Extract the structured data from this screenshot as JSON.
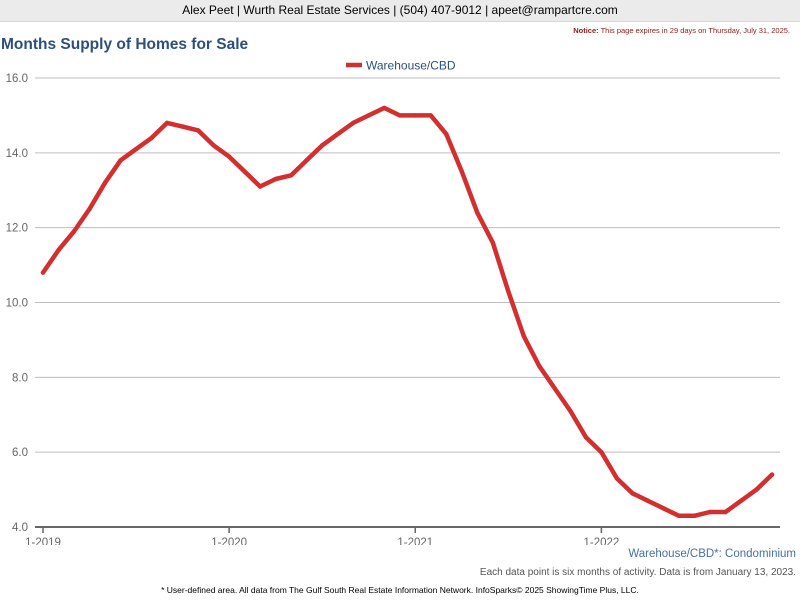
{
  "header": {
    "contact": "Alex Peet | Wurth Real Estate Services | (504) 407-9012 | apeet@rampartcre.com",
    "notice_label": "Notice:",
    "notice_text": "This page expires in 29 days on Thursday, July 31, 2025."
  },
  "chart_data": {
    "type": "line",
    "title": "Months Supply of Homes for Sale",
    "xlabel": "",
    "ylabel": "",
    "ylim": [
      4.0,
      16.0
    ],
    "yticks": [
      "4.0",
      "6.0",
      "8.0",
      "10.0",
      "12.0",
      "14.0",
      "16.0"
    ],
    "xticks": [
      "1-2019",
      "1-2020",
      "1-2021",
      "1-2022"
    ],
    "grid": true,
    "legend": "top-center",
    "x": [
      "1-2019",
      "2-2019",
      "3-2019",
      "4-2019",
      "5-2019",
      "6-2019",
      "7-2019",
      "8-2019",
      "9-2019",
      "10-2019",
      "11-2019",
      "12-2019",
      "1-2020",
      "2-2020",
      "3-2020",
      "4-2020",
      "5-2020",
      "6-2020",
      "7-2020",
      "8-2020",
      "9-2020",
      "10-2020",
      "11-2020",
      "12-2020",
      "1-2021",
      "2-2021",
      "3-2021",
      "4-2021",
      "5-2021",
      "6-2021",
      "7-2021",
      "8-2021",
      "9-2021",
      "10-2021",
      "11-2021",
      "12-2021",
      "1-2022",
      "2-2022",
      "3-2022",
      "4-2022",
      "5-2022",
      "6-2022",
      "7-2022",
      "8-2022",
      "9-2022",
      "10-2022",
      "11-2022",
      "12-2022"
    ],
    "series": [
      {
        "name": "Warehouse/CBD",
        "color": "#d32f2f",
        "values": [
          10.8,
          11.4,
          11.9,
          12.5,
          13.2,
          13.8,
          14.1,
          14.4,
          14.8,
          14.7,
          14.6,
          14.2,
          13.9,
          13.5,
          13.1,
          13.3,
          13.4,
          13.8,
          14.2,
          14.5,
          14.8,
          15.0,
          15.2,
          15.0,
          15.0,
          15.0,
          14.5,
          13.5,
          12.4,
          11.6,
          10.3,
          9.1,
          8.3,
          7.7,
          7.1,
          6.4,
          6.0,
          5.3,
          4.9,
          4.7,
          4.5,
          4.3,
          4.3,
          4.4,
          4.4,
          4.7,
          5.0,
          5.4
        ]
      }
    ]
  },
  "footer": {
    "source": "Warehouse/CBD*: Condominium",
    "note": "Each data point is six months of activity. Data is from January 13, 2023.",
    "credit": "* User-defined area. All data from The Gulf South Real Estate Information Network. InfoSparks© 2025 ShowingTime Plus, LLC."
  }
}
